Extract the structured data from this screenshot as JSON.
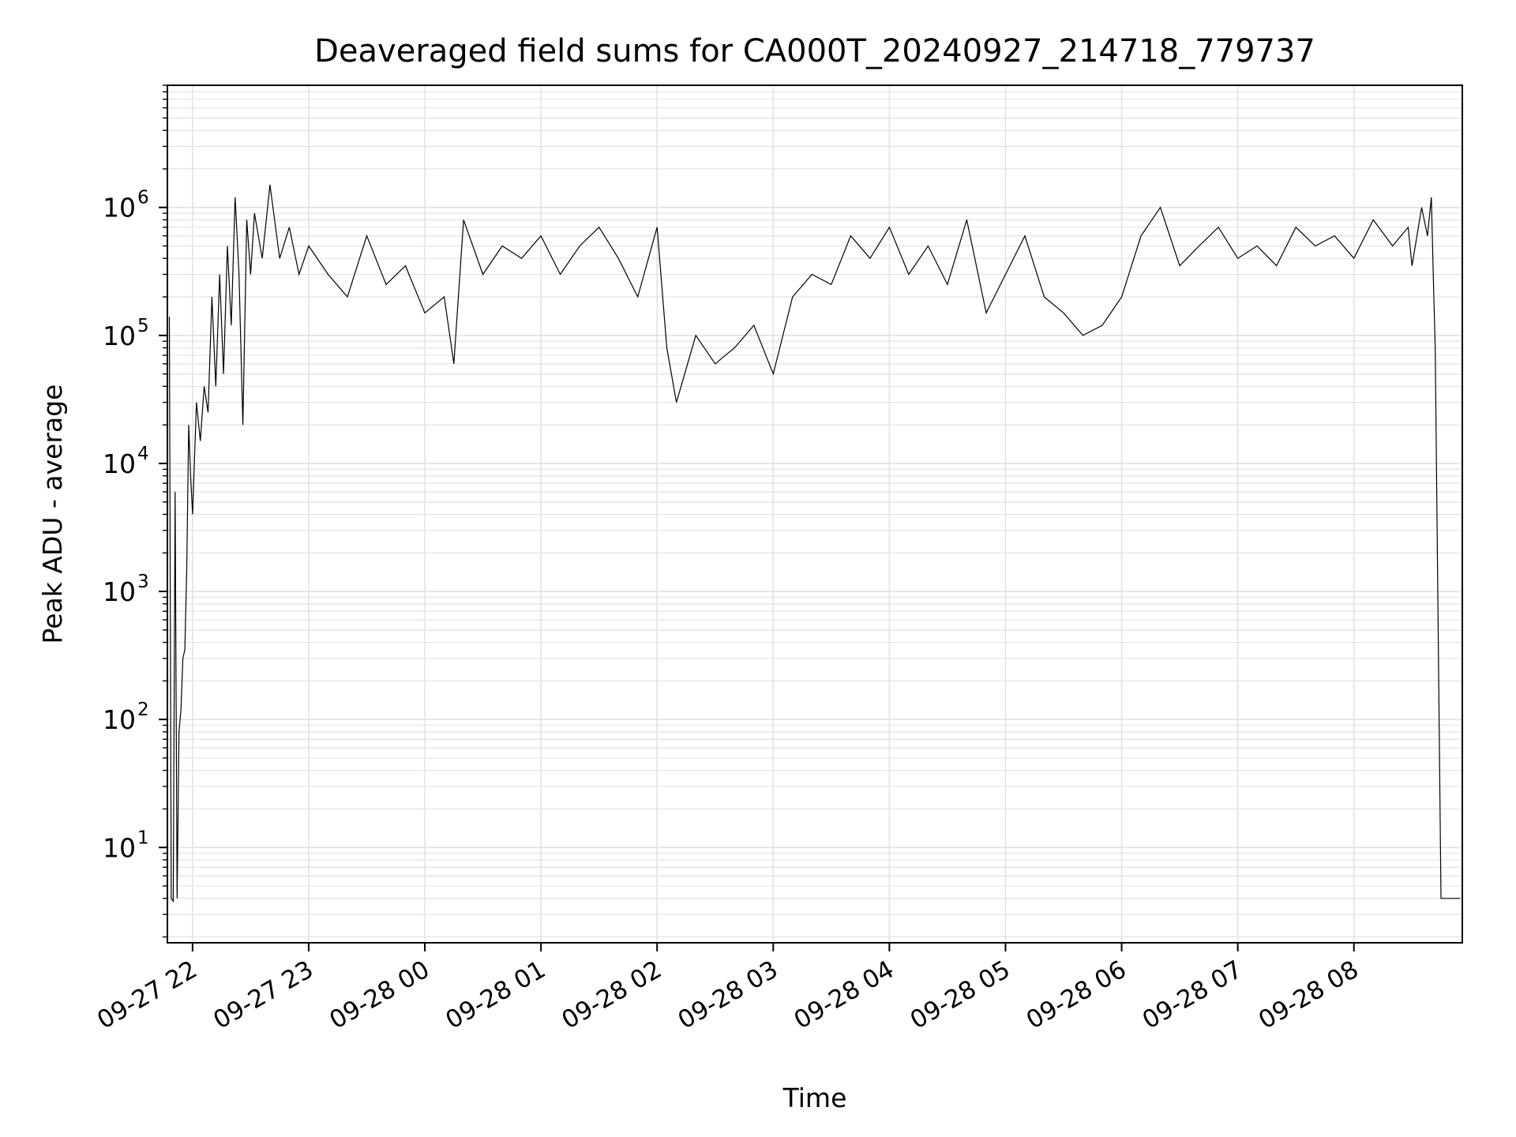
{
  "chart_data": {
    "type": "line",
    "title": "Deaveraged field sums for CA000T_20240927_214718_779737",
    "xlabel": "Time",
    "ylabel": "Peak ADU - average",
    "yscale": "log",
    "ylim": [
      1.8,
      9000000
    ],
    "xlim": [
      "2024-09-27 21:47:00",
      "2024-09-28 08:56:00"
    ],
    "grid": true,
    "legend": "none",
    "line_color": "#000000",
    "x_ticks": [
      {
        "value": "2024-09-27 22:00",
        "label": "09-27 22"
      },
      {
        "value": "2024-09-27 23:00",
        "label": "09-27 23"
      },
      {
        "value": "2024-09-28 00:00",
        "label": "09-28 00"
      },
      {
        "value": "2024-09-28 01:00",
        "label": "09-28 01"
      },
      {
        "value": "2024-09-28 02:00",
        "label": "09-28 02"
      },
      {
        "value": "2024-09-28 03:00",
        "label": "09-28 03"
      },
      {
        "value": "2024-09-28 04:00",
        "label": "09-28 04"
      },
      {
        "value": "2024-09-28 05:00",
        "label": "09-28 05"
      },
      {
        "value": "2024-09-28 06:00",
        "label": "09-28 06"
      },
      {
        "value": "2024-09-28 07:00",
        "label": "09-28 07"
      },
      {
        "value": "2024-09-28 08:00",
        "label": "09-28 08"
      }
    ],
    "y_ticks": [
      {
        "value": 10,
        "base": "10",
        "exp": "1"
      },
      {
        "value": 100,
        "base": "10",
        "exp": "2"
      },
      {
        "value": 1000,
        "base": "10",
        "exp": "3"
      },
      {
        "value": 10000,
        "base": "10",
        "exp": "4"
      },
      {
        "value": 100000,
        "base": "10",
        "exp": "5"
      },
      {
        "value": 1000000,
        "base": "10",
        "exp": "6"
      }
    ],
    "series": [
      {
        "x": [
          "2024-09-27 21:48",
          "2024-09-27 21:49",
          "2024-09-27 21:50",
          "2024-09-27 21:51",
          "2024-09-27 21:52",
          "2024-09-27 21:53",
          "2024-09-27 21:54",
          "2024-09-27 21:55",
          "2024-09-27 21:56",
          "2024-09-27 21:57",
          "2024-09-27 21:58",
          "2024-09-27 21:59",
          "2024-09-27 22:00",
          "2024-09-27 22:02",
          "2024-09-27 22:04",
          "2024-09-27 22:06",
          "2024-09-27 22:08",
          "2024-09-27 22:10",
          "2024-09-27 22:12",
          "2024-09-27 22:14",
          "2024-09-27 22:16",
          "2024-09-27 22:18",
          "2024-09-27 22:20",
          "2024-09-27 22:22",
          "2024-09-27 22:24",
          "2024-09-27 22:26",
          "2024-09-27 22:28",
          "2024-09-27 22:30",
          "2024-09-27 22:32",
          "2024-09-27 22:36",
          "2024-09-27 22:40",
          "2024-09-27 22:45",
          "2024-09-27 22:50",
          "2024-09-27 22:55",
          "2024-09-27 23:00",
          "2024-09-27 23:10",
          "2024-09-27 23:20",
          "2024-09-27 23:30",
          "2024-09-27 23:40",
          "2024-09-27 23:50",
          "2024-09-28 00:00",
          "2024-09-28 00:10",
          "2024-09-28 00:15",
          "2024-09-28 00:20",
          "2024-09-28 00:30",
          "2024-09-28 00:40",
          "2024-09-28 00:50",
          "2024-09-28 01:00",
          "2024-09-28 01:10",
          "2024-09-28 01:20",
          "2024-09-28 01:30",
          "2024-09-28 01:40",
          "2024-09-28 01:50",
          "2024-09-28 02:00",
          "2024-09-28 02:05",
          "2024-09-28 02:10",
          "2024-09-28 02:20",
          "2024-09-28 02:30",
          "2024-09-28 02:40",
          "2024-09-28 02:50",
          "2024-09-28 03:00",
          "2024-09-28 03:10",
          "2024-09-28 03:20",
          "2024-09-28 03:30",
          "2024-09-28 03:40",
          "2024-09-28 03:50",
          "2024-09-28 04:00",
          "2024-09-28 04:10",
          "2024-09-28 04:20",
          "2024-09-28 04:30",
          "2024-09-28 04:40",
          "2024-09-28 04:50",
          "2024-09-28 05:00",
          "2024-09-28 05:10",
          "2024-09-28 05:20",
          "2024-09-28 05:30",
          "2024-09-28 05:40",
          "2024-09-28 05:50",
          "2024-09-28 06:00",
          "2024-09-28 06:10",
          "2024-09-28 06:20",
          "2024-09-28 06:30",
          "2024-09-28 06:40",
          "2024-09-28 06:50",
          "2024-09-28 07:00",
          "2024-09-28 07:10",
          "2024-09-28 07:20",
          "2024-09-28 07:30",
          "2024-09-28 07:40",
          "2024-09-28 07:50",
          "2024-09-28 08:00",
          "2024-09-28 08:10",
          "2024-09-28 08:20",
          "2024-09-28 08:28",
          "2024-09-28 08:30",
          "2024-09-28 08:35",
          "2024-09-28 08:38",
          "2024-09-28 08:40",
          "2024-09-28 08:41",
          "2024-09-28 08:42",
          "2024-09-28 08:45",
          "2024-09-28 08:50",
          "2024-09-28 08:55"
        ],
        "y": [
          140000,
          4,
          3.8,
          6000,
          4,
          80,
          120,
          300,
          350,
          1500,
          20000,
          8000,
          4000,
          30000,
          15000,
          40000,
          25000,
          200000,
          40000,
          300000,
          50000,
          500000,
          120000,
          1200000,
          300000,
          20000,
          800000,
          300000,
          900000,
          400000,
          1500000,
          400000,
          700000,
          300000,
          500000,
          300000,
          200000,
          600000,
          250000,
          350000,
          150000,
          200000,
          60000,
          800000,
          300000,
          500000,
          400000,
          600000,
          300000,
          500000,
          700000,
          400000,
          200000,
          700000,
          80000,
          30000,
          100000,
          60000,
          80000,
          120000,
          50000,
          200000,
          300000,
          250000,
          600000,
          400000,
          700000,
          300000,
          500000,
          250000,
          800000,
          150000,
          300000,
          600000,
          200000,
          150000,
          100000,
          120000,
          200000,
          600000,
          1000000,
          350000,
          500000,
          700000,
          400000,
          500000,
          350000,
          700000,
          500000,
          600000,
          400000,
          800000,
          500000,
          700000,
          350000,
          1000000,
          600000,
          1200000,
          300000,
          80000,
          4,
          4,
          4
        ]
      }
    ]
  }
}
